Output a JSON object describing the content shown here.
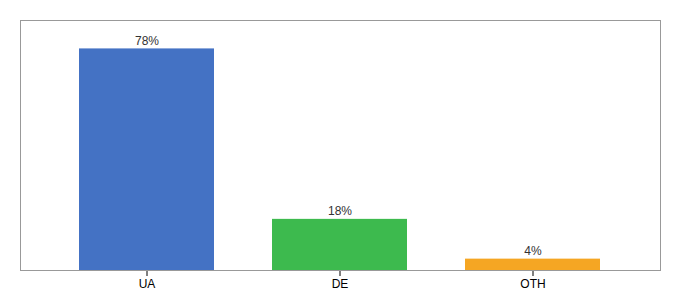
{
  "chart_data": {
    "type": "bar",
    "categories": [
      "UA",
      "DE",
      "OTH"
    ],
    "values": [
      78,
      18,
      4
    ],
    "value_labels": [
      "78%",
      "18%",
      "4%"
    ],
    "colors": [
      "#4472c4",
      "#3dba4e",
      "#f5a623"
    ],
    "ylim": [
      0,
      88
    ],
    "data_labels": true,
    "tick_labels": "x"
  }
}
